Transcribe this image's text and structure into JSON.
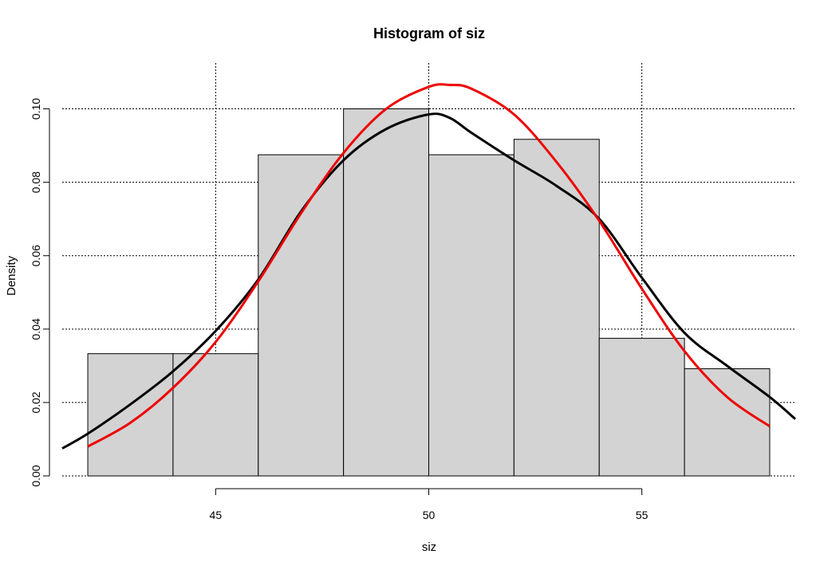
{
  "chart_data": {
    "type": "bar",
    "title": "Histogram of siz",
    "xlabel": "siz",
    "ylabel": "Density",
    "xlim": [
      41.4,
      58.6
    ],
    "ylim": [
      0,
      0.1125
    ],
    "x_ticks": [
      45,
      50,
      55
    ],
    "y_ticks": [
      0.0,
      0.02,
      0.04,
      0.06,
      0.08,
      0.1
    ],
    "x_tick_labels": [
      "45",
      "50",
      "55"
    ],
    "y_tick_labels": [
      "0.00",
      "0.02",
      "0.04",
      "0.06",
      "0.08",
      "0.10"
    ],
    "grid": true,
    "grid_style": "dotted",
    "bins": [
      {
        "from": 42,
        "to": 44,
        "density": 0.0333
      },
      {
        "from": 44,
        "to": 46,
        "density": 0.0333
      },
      {
        "from": 46,
        "to": 48,
        "density": 0.0875
      },
      {
        "from": 48,
        "to": 50,
        "density": 0.1
      },
      {
        "from": 50,
        "to": 52,
        "density": 0.0875
      },
      {
        "from": 52,
        "to": 54,
        "density": 0.0917
      },
      {
        "from": 54,
        "to": 56,
        "density": 0.0375
      },
      {
        "from": 56,
        "to": 58,
        "density": 0.0292
      }
    ],
    "bar_color": "#d3d3d3",
    "series": [
      {
        "type": "line",
        "color": "#000000",
        "x": [
          41.4,
          42,
          43,
          44,
          45,
          46,
          47,
          48,
          49,
          50,
          50.5,
          51,
          52,
          53,
          54,
          55,
          56,
          57,
          58,
          58.6
        ],
        "y": [
          0.0075,
          0.0115,
          0.0195,
          0.0285,
          0.0395,
          0.0535,
          0.072,
          0.086,
          0.0945,
          0.0985,
          0.0975,
          0.0935,
          0.086,
          0.079,
          0.07,
          0.054,
          0.039,
          0.03,
          0.0215,
          0.0155
        ]
      },
      {
        "type": "line",
        "color": "#ee0000",
        "x": [
          42,
          43,
          44,
          45,
          46,
          47,
          48,
          49,
          50,
          50.5,
          51,
          52,
          53,
          54,
          55,
          56,
          57,
          58
        ],
        "y": [
          0.008,
          0.0145,
          0.024,
          0.0365,
          0.053,
          0.0715,
          0.088,
          0.1,
          0.106,
          0.1065,
          0.1055,
          0.0985,
          0.0855,
          0.0695,
          0.051,
          0.034,
          0.0215,
          0.0135
        ]
      }
    ]
  }
}
